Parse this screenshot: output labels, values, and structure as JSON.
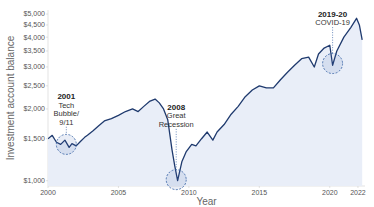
{
  "chart_data": {
    "type": "line",
    "log": "y",
    "grid": false,
    "x_label": "Year",
    "y_label": "Investment account balance",
    "x": [
      2000,
      2000.3,
      2000.6,
      2000.9,
      2001.2,
      2001.5,
      2001.7,
      2002.0,
      2002.3,
      2002.6,
      2002.8,
      2003.2,
      2003.6,
      2004,
      2004.5,
      2005,
      2005.5,
      2006,
      2006.4,
      2006.8,
      2007.2,
      2007.6,
      2007.9,
      2008.2,
      2008.5,
      2008.8,
      2009.0,
      2009.2,
      2009.5,
      2009.8,
      2010.2,
      2010.5,
      2010.9,
      2011.3,
      2011.7,
      2012,
      2012.5,
      2013,
      2013.5,
      2014,
      2014.5,
      2015,
      2015.5,
      2016,
      2016.5,
      2017,
      2017.5,
      2018,
      2018.5,
      2018.9,
      2019.2,
      2019.6,
      2020,
      2020.2,
      2020.5,
      2021,
      2021.5,
      2021.9,
      2022.1,
      2022.3
    ],
    "values": [
      1500,
      1550,
      1450,
      1420,
      1480,
      1380,
      1430,
      1400,
      1460,
      1520,
      1550,
      1620,
      1700,
      1780,
      1820,
      1880,
      1950,
      2000,
      1950,
      2050,
      2150,
      2200,
      2120,
      2000,
      1800,
      1350,
      1150,
      1000,
      1200,
      1320,
      1420,
      1400,
      1500,
      1600,
      1480,
      1600,
      1720,
      1900,
      2050,
      2250,
      2400,
      2500,
      2450,
      2450,
      2650,
      2850,
      3050,
      3250,
      3300,
      3000,
      3400,
      3600,
      3700,
      3050,
      3500,
      4000,
      4400,
      4800,
      4500,
      3900
    ],
    "color": "#1f3a6e",
    "xlim": [
      2000,
      2022.5
    ],
    "ylim": [
      950,
      5200
    ],
    "xticks": [
      2000,
      2005,
      2010,
      2015,
      2020,
      2022
    ],
    "yticks": [
      {
        "value": 1000,
        "label": "$1,000"
      },
      {
        "value": 1500,
        "label": "$1,500"
      },
      {
        "value": 2000,
        "label": "$2,000"
      },
      {
        "value": 2500,
        "label": "$2,500"
      },
      {
        "value": 3000,
        "label": "$3,000"
      },
      {
        "value": 3500,
        "label": "$3,500"
      },
      {
        "value": 4000,
        "label": "$4,000"
      },
      {
        "value": 4500,
        "label": "$4,500"
      },
      {
        "value": 5000,
        "label": "$5,000"
      }
    ],
    "annotations": [
      {
        "label": "2001",
        "text": [
          "Tech",
          "Bubble/",
          "9/11"
        ],
        "x": 2001.3,
        "y": 1420,
        "text_y": 1700
      },
      {
        "label": "2008",
        "text": [
          "Great",
          "Recession"
        ],
        "x": 2009.1,
        "y": 1010,
        "text_y": 1665
      },
      {
        "label": "2019-20",
        "text": [
          "COVID-19"
        ],
        "x": 2020.2,
        "y": 3100,
        "text_y": 4450
      }
    ]
  }
}
